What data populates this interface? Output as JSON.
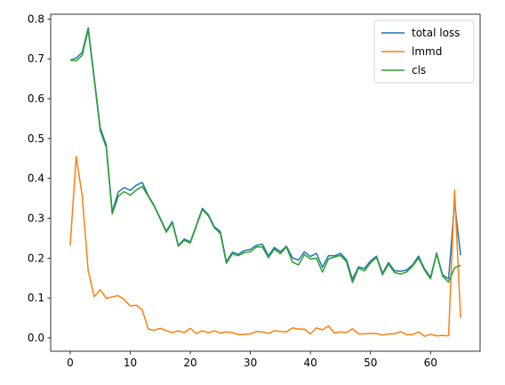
{
  "chart_data": {
    "type": "line",
    "title": "",
    "xlabel": "",
    "ylabel": "",
    "xlim": [
      -3.25,
      68.25
    ],
    "ylim": [
      -0.0335,
      0.812
    ],
    "xticks": [
      0,
      10,
      20,
      30,
      40,
      50,
      60
    ],
    "yticks": [
      0.0,
      0.1,
      0.2,
      0.3,
      0.4,
      0.5,
      0.6,
      0.7,
      0.8
    ],
    "xtick_labels": [
      "0",
      "10",
      "20",
      "30",
      "40",
      "50",
      "60"
    ],
    "ytick_labels": [
      "0.0",
      "0.1",
      "0.2",
      "0.3",
      "0.4",
      "0.5",
      "0.6",
      "0.7",
      "0.8"
    ],
    "grid": false,
    "legend_position": "top-right",
    "x": [
      0,
      1,
      2,
      3,
      4,
      5,
      6,
      7,
      8,
      9,
      10,
      11,
      12,
      13,
      14,
      15,
      16,
      17,
      18,
      19,
      20,
      21,
      22,
      23,
      24,
      25,
      26,
      27,
      28,
      29,
      30,
      31,
      32,
      33,
      34,
      35,
      36,
      37,
      38,
      39,
      40,
      41,
      42,
      43,
      44,
      45,
      46,
      47,
      48,
      49,
      50,
      51,
      52,
      53,
      54,
      55,
      56,
      57,
      58,
      59,
      60,
      61,
      62,
      63,
      64,
      65
    ],
    "series": [
      {
        "name": "total loss",
        "color": "#1f77b4",
        "values": [
          0.697,
          0.702,
          0.716,
          0.778,
          0.653,
          0.527,
          0.484,
          0.316,
          0.366,
          0.377,
          0.37,
          0.383,
          0.39,
          0.357,
          0.332,
          0.3,
          0.268,
          0.292,
          0.232,
          0.248,
          0.241,
          0.282,
          0.325,
          0.309,
          0.279,
          0.267,
          0.191,
          0.215,
          0.21,
          0.219,
          0.222,
          0.232,
          0.235,
          0.206,
          0.227,
          0.216,
          0.23,
          0.201,
          0.195,
          0.216,
          0.204,
          0.212,
          0.177,
          0.206,
          0.206,
          0.212,
          0.196,
          0.147,
          0.178,
          0.174,
          0.193,
          0.205,
          0.162,
          0.189,
          0.168,
          0.167,
          0.17,
          0.183,
          0.205,
          0.173,
          0.152,
          0.213,
          0.158,
          0.148,
          0.34,
          0.207
        ]
      },
      {
        "name": "lmmd",
        "color": "#ff7f0e",
        "values": [
          0.232,
          0.455,
          0.356,
          0.168,
          0.103,
          0.121,
          0.099,
          0.103,
          0.106,
          0.096,
          0.08,
          0.082,
          0.07,
          0.022,
          0.019,
          0.024,
          0.018,
          0.013,
          0.018,
          0.013,
          0.024,
          0.011,
          0.018,
          0.013,
          0.018,
          0.012,
          0.015,
          0.013,
          0.008,
          0.009,
          0.01,
          0.016,
          0.015,
          0.011,
          0.018,
          0.016,
          0.015,
          0.025,
          0.022,
          0.022,
          0.01,
          0.025,
          0.02,
          0.03,
          0.012,
          0.015,
          0.013,
          0.023,
          0.01,
          0.01,
          0.011,
          0.011,
          0.007,
          0.01,
          0.01,
          0.016,
          0.008,
          0.008,
          0.015,
          0.004,
          0.009,
          0.005,
          0.006,
          0.005,
          0.371,
          0.05
        ]
      },
      {
        "name": "cls",
        "color": "#2ca02c",
        "values": [
          0.697,
          0.695,
          0.709,
          0.773,
          0.648,
          0.52,
          0.478,
          0.311,
          0.355,
          0.367,
          0.358,
          0.371,
          0.38,
          0.355,
          0.33,
          0.298,
          0.265,
          0.289,
          0.23,
          0.245,
          0.238,
          0.28,
          0.322,
          0.306,
          0.276,
          0.262,
          0.187,
          0.211,
          0.206,
          0.214,
          0.216,
          0.228,
          0.228,
          0.201,
          0.223,
          0.211,
          0.228,
          0.19,
          0.183,
          0.209,
          0.198,
          0.2,
          0.165,
          0.198,
          0.203,
          0.207,
          0.191,
          0.139,
          0.175,
          0.168,
          0.188,
          0.202,
          0.158,
          0.185,
          0.164,
          0.16,
          0.165,
          0.18,
          0.2,
          0.17,
          0.148,
          0.211,
          0.155,
          0.14,
          0.176,
          0.182
        ]
      }
    ]
  }
}
